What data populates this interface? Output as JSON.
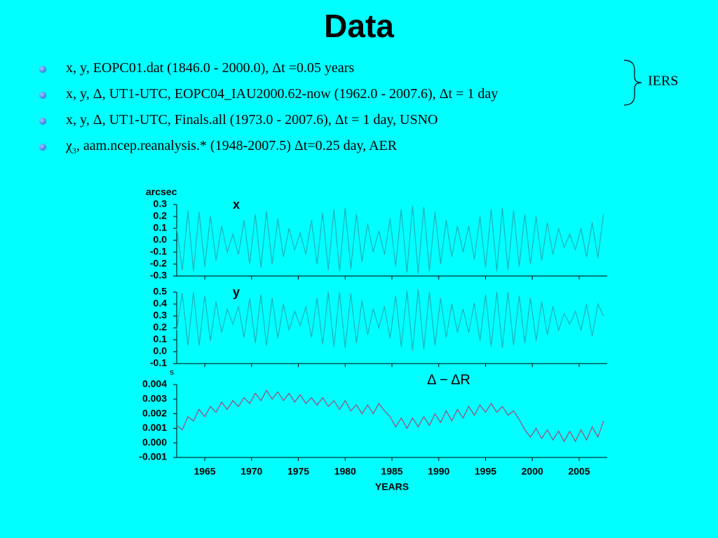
{
  "header": {
    "title": "Data"
  },
  "bullets": [
    "x, y, EOPC01.dat (1846.0 - 2000.0), Δt =0.05 years",
    "x, y, Δ, UT1-UTC, EOPC04_IAU2000.62-now (1962.0 - 2007.6), Δt = 1 day",
    "x, y, Δ, UT1-UTC, Finals.all (1973.0 - 2007.6), Δt = 1 day, USNO",
    {
      "symbol": "χ",
      "subscript": "3",
      "text": ", aam.ncep.reanalysis.* (1948-2007.5) Δt=0.25 day, AER"
    }
  ],
  "brace_label": "IERS",
  "chart_data": [
    {
      "type": "line",
      "label": "x",
      "unit": "arcsec",
      "color": "#20b0b8",
      "x": [
        1962.0,
        1962.6,
        1963.2,
        1963.8,
        1964.4,
        1965.0,
        1965.6,
        1966.2,
        1966.8,
        1967.4,
        1968.0,
        1968.6,
        1969.2,
        1969.8,
        1970.4,
        1971.0,
        1971.6,
        1972.2,
        1972.8,
        1973.4,
        1974.0,
        1974.6,
        1975.2,
        1975.8,
        1976.4,
        1977.0,
        1977.6,
        1978.2,
        1978.8,
        1979.4,
        1980.0,
        1980.6,
        1981.2,
        1981.8,
        1982.4,
        1983.0,
        1983.6,
        1984.2,
        1984.8,
        1985.4,
        1986.0,
        1986.6,
        1987.2,
        1987.8,
        1988.4,
        1989.0,
        1989.6,
        1990.2,
        1990.8,
        1991.4,
        1992.0,
        1992.6,
        1993.2,
        1993.8,
        1994.4,
        1995.0,
        1995.6,
        1996.2,
        1996.8,
        1997.4,
        1998.0,
        1998.6,
        1999.2,
        1999.8,
        2000.4,
        2001.0,
        2001.6,
        2002.2,
        2002.8,
        2003.4,
        2004.0,
        2004.6,
        2005.2,
        2005.8,
        2006.4,
        2007.0,
        2007.6
      ],
      "values": [
        0.1,
        -0.25,
        0.25,
        -0.26,
        0.24,
        -0.22,
        0.2,
        -0.17,
        0.12,
        -0.1,
        0.05,
        -0.12,
        0.17,
        -0.2,
        0.22,
        -0.23,
        0.24,
        -0.2,
        0.18,
        -0.14,
        0.1,
        -0.08,
        0.06,
        -0.12,
        0.17,
        -0.2,
        0.23,
        -0.25,
        0.26,
        -0.26,
        0.27,
        -0.24,
        0.22,
        -0.18,
        0.14,
        -0.1,
        0.08,
        -0.12,
        0.18,
        -0.22,
        0.26,
        -0.27,
        0.29,
        -0.28,
        0.28,
        -0.26,
        0.24,
        -0.2,
        0.17,
        -0.14,
        0.12,
        -0.1,
        0.12,
        -0.16,
        0.2,
        -0.23,
        0.26,
        -0.26,
        0.27,
        -0.25,
        0.25,
        -0.22,
        0.22,
        -0.2,
        0.2,
        -0.17,
        0.15,
        -0.12,
        0.1,
        -0.06,
        0.05,
        -0.08,
        0.1,
        -0.14,
        0.15,
        -0.15,
        0.22
      ],
      "xlim": [
        1962,
        2008
      ],
      "ylim": [
        -0.3,
        0.3
      ],
      "yticks": [
        0.3,
        0.2,
        0.1,
        {
          "value": 0,
          "label": "0.0"
        },
        -0.1,
        -0.2,
        -0.3
      ]
    },
    {
      "type": "line",
      "label": "y",
      "color": "#20b0b8",
      "x": [
        1962.0,
        1962.6,
        1963.2,
        1963.8,
        1964.4,
        1965.0,
        1965.6,
        1966.2,
        1966.8,
        1967.4,
        1968.0,
        1968.6,
        1969.2,
        1969.8,
        1970.4,
        1971.0,
        1971.6,
        1972.2,
        1972.8,
        1973.4,
        1974.0,
        1974.6,
        1975.2,
        1975.8,
        1976.4,
        1977.0,
        1977.6,
        1978.2,
        1978.8,
        1979.4,
        1980.0,
        1980.6,
        1981.2,
        1981.8,
        1982.4,
        1983.0,
        1983.6,
        1984.2,
        1984.8,
        1985.4,
        1986.0,
        1986.6,
        1987.2,
        1987.8,
        1988.4,
        1989.0,
        1989.6,
        1990.2,
        1990.8,
        1991.4,
        1992.0,
        1992.6,
        1993.2,
        1993.8,
        1994.4,
        1995.0,
        1995.6,
        1996.2,
        1996.8,
        1997.4,
        1998.0,
        1998.6,
        1999.2,
        1999.8,
        2000.4,
        2001.0,
        2001.6,
        2002.2,
        2002.8,
        2003.4,
        2004.0,
        2004.6,
        2005.2,
        2005.8,
        2006.4,
        2007.0,
        2007.6
      ],
      "values": [
        0.18,
        0.49,
        0.05,
        0.5,
        0.05,
        0.47,
        0.09,
        0.42,
        0.16,
        0.36,
        0.23,
        0.38,
        0.12,
        0.45,
        0.07,
        0.48,
        0.05,
        0.45,
        0.11,
        0.4,
        0.18,
        0.34,
        0.22,
        0.38,
        0.12,
        0.45,
        0.06,
        0.5,
        0.04,
        0.5,
        0.03,
        0.49,
        0.07,
        0.43,
        0.14,
        0.36,
        0.2,
        0.38,
        0.11,
        0.47,
        0.04,
        0.51,
        0.01,
        0.52,
        0.02,
        0.5,
        0.05,
        0.45,
        0.12,
        0.4,
        0.16,
        0.36,
        0.16,
        0.41,
        0.09,
        0.48,
        0.04,
        0.5,
        0.03,
        0.5,
        0.05,
        0.47,
        0.07,
        0.45,
        0.09,
        0.42,
        0.14,
        0.38,
        0.18,
        0.32,
        0.23,
        0.34,
        0.18,
        0.4,
        0.13,
        0.4,
        0.3
      ],
      "xlim": [
        1962,
        2008
      ],
      "ylim": [
        -0.1,
        0.5
      ],
      "yticks": [
        0.5,
        0.4,
        0.3,
        0.2,
        0.1,
        {
          "value": 0,
          "label": "0.0"
        },
        -0.1
      ]
    },
    {
      "type": "line",
      "label": "Δ − ΔR",
      "unit": "s",
      "xlabel": "YEARS",
      "color": "#a04878",
      "x": [
        1962.0,
        1962.6,
        1963.2,
        1963.8,
        1964.4,
        1965.0,
        1965.6,
        1966.2,
        1966.8,
        1967.4,
        1968.0,
        1968.6,
        1969.2,
        1969.8,
        1970.4,
        1971.0,
        1971.6,
        1972.2,
        1972.8,
        1973.4,
        1974.0,
        1974.6,
        1975.2,
        1975.8,
        1976.4,
        1977.0,
        1977.6,
        1978.2,
        1978.8,
        1979.4,
        1980.0,
        1980.6,
        1981.2,
        1981.8,
        1982.4,
        1983.0,
        1983.6,
        1984.2,
        1984.8,
        1985.4,
        1986.0,
        1986.6,
        1987.2,
        1987.8,
        1988.4,
        1989.0,
        1989.6,
        1990.2,
        1990.8,
        1991.4,
        1992.0,
        1992.6,
        1993.2,
        1993.8,
        1994.4,
        1995.0,
        1995.6,
        1996.2,
        1996.8,
        1997.4,
        1998.0,
        1998.6,
        1999.2,
        1999.8,
        2000.4,
        2001.0,
        2001.6,
        2002.2,
        2002.8,
        2003.4,
        2004.0,
        2004.6,
        2005.2,
        2005.8,
        2006.4,
        2007.0,
        2007.6
      ],
      "values": [
        0.0012,
        0.0009,
        0.0018,
        0.0015,
        0.0023,
        0.0018,
        0.0025,
        0.0021,
        0.0028,
        0.0023,
        0.0029,
        0.0025,
        0.0031,
        0.0027,
        0.0034,
        0.0029,
        0.0036,
        0.003,
        0.0035,
        0.0029,
        0.0034,
        0.0028,
        0.0033,
        0.0027,
        0.0031,
        0.0026,
        0.0031,
        0.0025,
        0.0029,
        0.0023,
        0.0029,
        0.0022,
        0.0026,
        0.002,
        0.0026,
        0.002,
        0.0027,
        0.0022,
        0.0018,
        0.0011,
        0.0017,
        0.001,
        0.0017,
        0.0011,
        0.0018,
        0.0012,
        0.002,
        0.0014,
        0.0022,
        0.0015,
        0.0023,
        0.0017,
        0.0025,
        0.0019,
        0.0026,
        0.0021,
        0.0027,
        0.0021,
        0.0025,
        0.0019,
        0.0022,
        0.0016,
        0.0009,
        0.0004,
        0.001,
        0.0003,
        0.0009,
        0.0002,
        0.0008,
        0.0001,
        0.0008,
        0.0001,
        0.0009,
        0.0002,
        0.0011,
        0.0004,
        0.0015
      ],
      "xlim": [
        1962,
        2008
      ],
      "ylim": [
        -0.001,
        0.004
      ],
      "xticks": [
        1965,
        1970,
        1975,
        1980,
        1985,
        1990,
        1995,
        2000,
        2005
      ],
      "yticks": [
        0.004,
        0.003,
        0.002,
        0.001,
        {
          "value": 0,
          "label": "0.000"
        },
        -0.001
      ]
    }
  ]
}
